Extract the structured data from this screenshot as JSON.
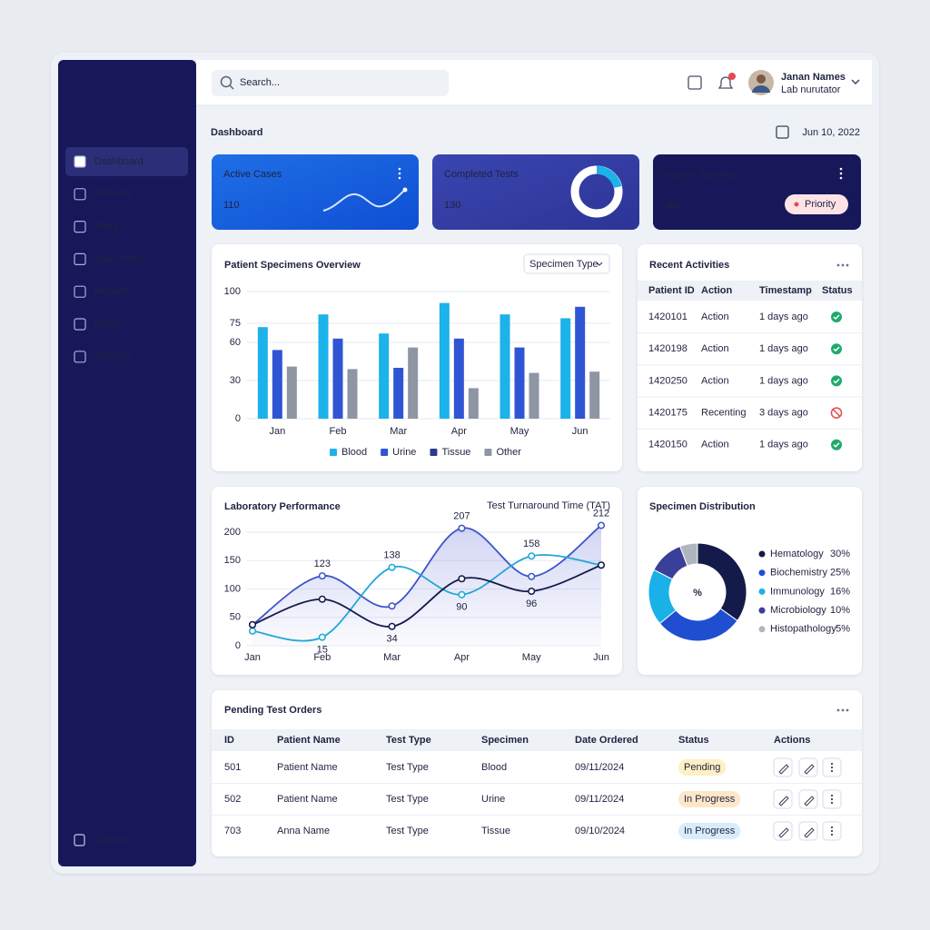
{
  "search": {
    "placeholder": "Search..."
  },
  "user": {
    "name": "Janan Names",
    "role": "Lab nurutator"
  },
  "sidebar": {
    "items": [
      "Dashboard",
      "Patients",
      "Tests",
      "Specimens",
      "Reports",
      "Billing",
      "Settings"
    ],
    "logout": "Logout"
  },
  "header": {
    "title": "Dashboard",
    "date": "Jun 10, 2022"
  },
  "cards": [
    {
      "title": "Active Cases",
      "value": 110
    },
    {
      "title": "Completed Tests",
      "value": 130
    },
    {
      "title": "Urgent Samples",
      "value": "stat",
      "badge": "Priority"
    }
  ],
  "specimens_chart": {
    "chart_data": {
      "type": "bar",
      "title": "Patient Specimens Overview",
      "dropdown": "Specimen Type",
      "categories": [
        "Jan",
        "Feb",
        "Mar",
        "Apr",
        "May",
        "Jun"
      ],
      "series": [
        {
          "name": "Blood",
          "color": "#1cb2ea",
          "values": [
            72,
            82,
            67,
            91,
            82,
            79
          ]
        },
        {
          "name": "Urine",
          "color": "#2f55d4",
          "values": [
            54,
            63,
            40,
            63,
            56,
            88
          ]
        },
        {
          "name": "Tissue",
          "color": "#2e3a8c",
          "values": [
            null,
            null,
            null,
            null,
            null,
            null
          ]
        },
        {
          "name": "Other",
          "color": "#8e96a3",
          "values": [
            41,
            39,
            56,
            24,
            36,
            37
          ]
        }
      ],
      "ylim": [
        0,
        100
      ],
      "yticks": [
        0,
        30,
        60,
        75,
        100
      ],
      "grid": true
    }
  },
  "performance_chart": {
    "chart_data": {
      "type": "line",
      "title": "Laboratory Performance",
      "subtitle": "Test Turnaround Time (TAT)",
      "categories": [
        "Jan",
        "Feb",
        "Mar",
        "Apr",
        "May",
        "Jun"
      ],
      "series": [
        {
          "color": "#3b55c8",
          "area": true,
          "values": [
            37,
            123,
            70,
            207,
            122,
            212
          ],
          "value_labels": [
            null,
            "123",
            null,
            "207",
            null,
            "212"
          ]
        },
        {
          "color": "#22a7d6",
          "values": [
            26,
            15,
            138,
            90,
            158,
            142
          ],
          "value_labels": [
            null,
            "15",
            "138",
            "90",
            "158",
            null
          ]
        },
        {
          "color": "#141a4a",
          "values": [
            37,
            82,
            34,
            118,
            96,
            142
          ],
          "value_labels": [
            null,
            null,
            "34",
            null,
            "96",
            null
          ]
        }
      ],
      "ylim": [
        0,
        200
      ],
      "yticks": [
        0,
        50,
        100,
        150,
        200
      ],
      "grid": true
    }
  },
  "recent_activities": {
    "title": "Recent Activities",
    "columns": [
      "Patient ID",
      "Action",
      "Timestamp",
      "Status"
    ],
    "rows": [
      [
        "1420101",
        "Action",
        "1 days ago"
      ],
      [
        "1420198",
        "Action",
        "1 days ago"
      ],
      [
        "1420250",
        "Action",
        "1 days ago"
      ],
      [
        "1420175",
        "Recenting",
        "3 days ago"
      ],
      [
        "1420150",
        "Action",
        "1 days ago"
      ]
    ],
    "status": [
      "done",
      "done",
      "done",
      "cancelled",
      "done"
    ]
  },
  "distribution_chart": {
    "chart_data": {
      "type": "pie",
      "title": "Specimen Distribution",
      "center_label": "%",
      "categories": [
        "Hematology",
        "Biochemistry",
        "Immunology",
        "Microbiology",
        "Histopathology"
      ],
      "values": [
        30,
        25,
        16,
        10,
        5
      ],
      "value_labels": [
        "30%",
        "25%",
        "16%",
        "10%",
        "5%"
      ],
      "colors": [
        "#141a4a",
        "#1f4fd0",
        "#1ab0e8",
        "#3a3f9a",
        "#b0b6c0"
      ]
    }
  },
  "pending_orders": {
    "title": "Pending Test Orders",
    "columns": [
      "ID",
      "Patient Name",
      "Test Type",
      "Specimen",
      "Date Ordered",
      "Status",
      "Actions"
    ],
    "rows": [
      [
        "501",
        "Patient Name",
        "Test Type",
        "Blood",
        "09/11/2024",
        "Pending"
      ],
      [
        "502",
        "Patient Name",
        "Test Type",
        "Urine",
        "09/11/2024",
        "In Progress"
      ],
      [
        "703",
        "Anna Name",
        "Test Type",
        "Tissue",
        "09/10/2024",
        "In Progress"
      ]
    ],
    "status_colors": [
      [
        "#fdf0c4",
        "#8a5a00"
      ],
      [
        "#fde7c8",
        "#8a4b00"
      ],
      [
        "#d8ecfb",
        "#1f5fa8"
      ]
    ]
  }
}
